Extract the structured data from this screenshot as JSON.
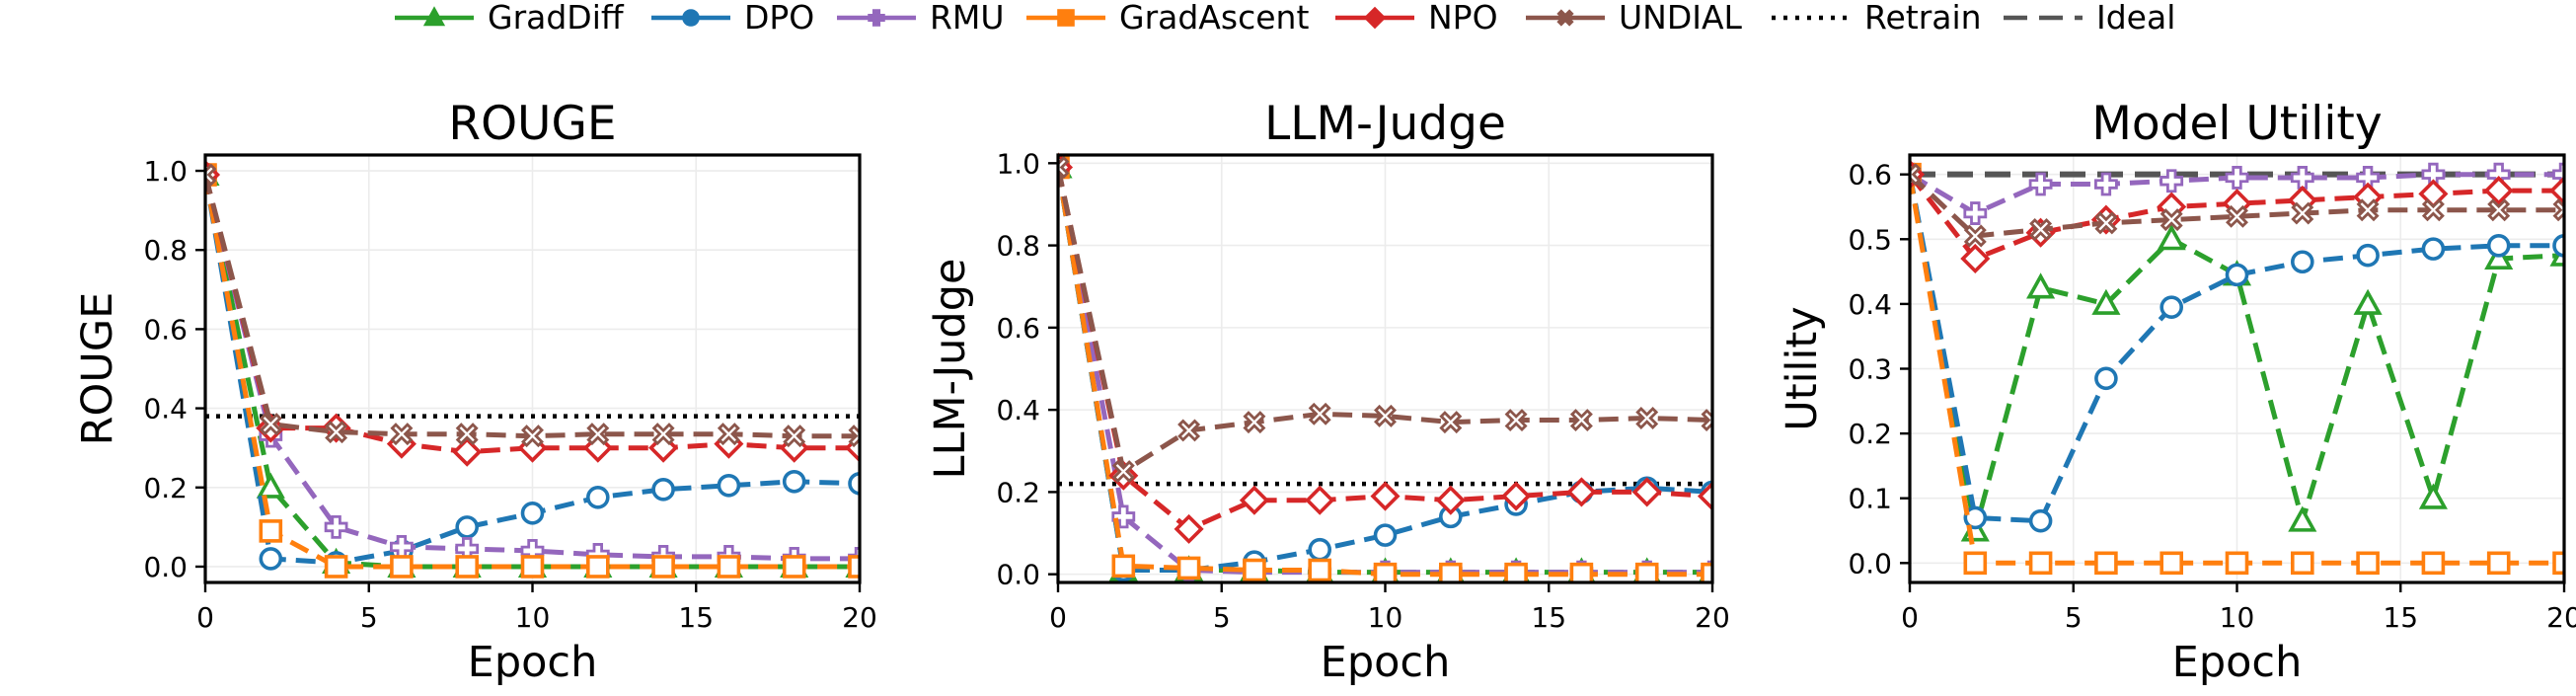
{
  "chart_data": {
    "type": "line",
    "layout": "three panels side by side sharing one legend",
    "legend_position": "top-center",
    "legend": [
      {
        "name": "GradDiff",
        "color": "#2ca02c",
        "marker": "triangle",
        "style": "solid"
      },
      {
        "name": "DPO",
        "color": "#1f77b4",
        "marker": "circle",
        "style": "solid"
      },
      {
        "name": "RMU",
        "color": "#9467bd",
        "marker": "plus",
        "style": "solid"
      },
      {
        "name": "GradAscent",
        "color": "#ff7f0e",
        "marker": "square",
        "style": "solid"
      },
      {
        "name": "NPO",
        "color": "#d62728",
        "marker": "diamond",
        "style": "solid"
      },
      {
        "name": "UNDIAL",
        "color": "#8c564b",
        "marker": "x",
        "style": "solid"
      },
      {
        "name": "Retrain",
        "color": "#000000",
        "marker": "none",
        "style": "dotted"
      },
      {
        "name": "Ideal",
        "color": "#555555",
        "marker": "none",
        "style": "dashed"
      }
    ],
    "panels": [
      {
        "title": "ROUGE",
        "xlabel": "Epoch",
        "ylabel": "ROUGE",
        "xlim": [
          0,
          20
        ],
        "ylim": [
          -0.04,
          1.04
        ],
        "xticks": [
          0,
          5,
          10,
          15,
          20
        ],
        "yticks": [
          0.0,
          0.2,
          0.4,
          0.6,
          0.8,
          1.0
        ],
        "ytick_labels": [
          "0.0",
          "0.2",
          "0.4",
          "0.6",
          "0.8",
          "1.0"
        ],
        "hlines": [
          {
            "name": "Retrain",
            "y": 0.38
          }
        ],
        "series": [
          {
            "name": "GradDiff",
            "x": [
              0,
              2,
              4,
              6,
              8,
              10,
              12,
              14,
              16,
              18,
              20
            ],
            "y": [
              0.99,
              0.2,
              0.01,
              0.0,
              0.0,
              0.0,
              0.0,
              0.0,
              0.0,
              0.0,
              0.0
            ]
          },
          {
            "name": "DPO",
            "x": [
              0,
              2,
              4,
              6,
              8,
              10,
              12,
              14,
              16,
              18,
              20
            ],
            "y": [
              0.99,
              0.02,
              0.01,
              0.04,
              0.1,
              0.135,
              0.175,
              0.195,
              0.205,
              0.215,
              0.21
            ]
          },
          {
            "name": "RMU",
            "x": [
              0,
              2,
              4,
              6,
              8,
              10,
              12,
              14,
              16,
              18,
              20
            ],
            "y": [
              0.99,
              0.33,
              0.1,
              0.05,
              0.045,
              0.04,
              0.03,
              0.025,
              0.025,
              0.02,
              0.02
            ]
          },
          {
            "name": "GradAscent",
            "x": [
              0,
              2,
              4,
              6,
              8,
              10,
              12,
              14,
              16,
              18,
              20
            ],
            "y": [
              0.99,
              0.09,
              0.0,
              0.0,
              0.0,
              0.0,
              0.0,
              0.0,
              0.0,
              0.0,
              0.0
            ]
          },
          {
            "name": "NPO",
            "x": [
              0,
              2,
              4,
              6,
              8,
              10,
              12,
              14,
              16,
              18,
              20
            ],
            "y": [
              0.99,
              0.35,
              0.35,
              0.31,
              0.29,
              0.3,
              0.3,
              0.3,
              0.31,
              0.3,
              0.3
            ]
          },
          {
            "name": "UNDIAL",
            "x": [
              0,
              2,
              4,
              6,
              8,
              10,
              12,
              14,
              16,
              18,
              20
            ],
            "y": [
              0.99,
              0.36,
              0.34,
              0.335,
              0.335,
              0.33,
              0.335,
              0.335,
              0.335,
              0.33,
              0.33
            ]
          }
        ]
      },
      {
        "title": "LLM-Judge",
        "xlabel": "Epoch",
        "ylabel": "LLM-Judge",
        "xlim": [
          0,
          20
        ],
        "ylim": [
          -0.02,
          1.02
        ],
        "xticks": [
          0,
          5,
          10,
          15,
          20
        ],
        "yticks": [
          0.0,
          0.2,
          0.4,
          0.6,
          0.8,
          1.0
        ],
        "ytick_labels": [
          "0.0",
          "0.2",
          "0.4",
          "0.6",
          "0.8",
          "1.0"
        ],
        "hlines": [
          {
            "name": "Retrain",
            "y": 0.22
          }
        ],
        "series": [
          {
            "name": "GradDiff",
            "x": [
              0,
              2,
              4,
              6,
              8,
              10,
              12,
              14,
              16,
              18,
              20
            ],
            "y": [
              0.99,
              0.01,
              0.01,
              0.01,
              0.005,
              0.005,
              0.005,
              0.005,
              0.005,
              0.005,
              0.005
            ]
          },
          {
            "name": "DPO",
            "x": [
              0,
              2,
              4,
              6,
              8,
              10,
              12,
              14,
              16,
              18,
              20
            ],
            "y": [
              0.99,
              0.01,
              0.01,
              0.03,
              0.06,
              0.095,
              0.14,
              0.17,
              0.2,
              0.21,
              0.2
            ]
          },
          {
            "name": "RMU",
            "x": [
              0,
              2,
              4,
              6,
              8,
              10,
              12,
              14,
              16,
              18,
              20
            ],
            "y": [
              0.99,
              0.14,
              0.01,
              0.005,
              0.005,
              0.005,
              0.005,
              0.005,
              0.005,
              0.005,
              0.005
            ]
          },
          {
            "name": "GradAscent",
            "x": [
              0,
              2,
              4,
              6,
              8,
              10,
              12,
              14,
              16,
              18,
              20
            ],
            "y": [
              0.99,
              0.02,
              0.015,
              0.01,
              0.01,
              0.0,
              0.0,
              0.0,
              0.0,
              0.0,
              0.0
            ]
          },
          {
            "name": "NPO",
            "x": [
              0,
              2,
              4,
              6,
              8,
              10,
              12,
              14,
              16,
              18,
              20
            ],
            "y": [
              0.99,
              0.24,
              0.11,
              0.18,
              0.18,
              0.19,
              0.18,
              0.19,
              0.2,
              0.2,
              0.19
            ]
          },
          {
            "name": "UNDIAL",
            "x": [
              0,
              2,
              4,
              6,
              8,
              10,
              12,
              14,
              16,
              18,
              20
            ],
            "y": [
              0.99,
              0.25,
              0.35,
              0.37,
              0.39,
              0.385,
              0.37,
              0.375,
              0.375,
              0.38,
              0.375
            ]
          }
        ]
      },
      {
        "title": "Model Utility",
        "xlabel": "Epoch",
        "ylabel": "Utility",
        "xlim": [
          0,
          20
        ],
        "ylim": [
          -0.03,
          0.63
        ],
        "xticks": [
          0,
          5,
          10,
          15,
          20
        ],
        "yticks": [
          0.0,
          0.1,
          0.2,
          0.3,
          0.4,
          0.5,
          0.6
        ],
        "ytick_labels": [
          "0.0",
          "0.1",
          "0.2",
          "0.3",
          "0.4",
          "0.5",
          "0.6"
        ],
        "hlines": [
          {
            "name": "Ideal",
            "y": 0.6
          }
        ],
        "series": [
          {
            "name": "GradDiff",
            "x": [
              0,
              2,
              4,
              6,
              8,
              10,
              12,
              14,
              16,
              18,
              20
            ],
            "y": [
              0.6,
              0.05,
              0.425,
              0.4,
              0.5,
              0.445,
              0.065,
              0.4,
              0.1,
              0.47,
              0.475
            ]
          },
          {
            "name": "DPO",
            "x": [
              0,
              2,
              4,
              6,
              8,
              10,
              12,
              14,
              16,
              18,
              20
            ],
            "y": [
              0.6,
              0.07,
              0.065,
              0.285,
              0.395,
              0.445,
              0.465,
              0.475,
              0.485,
              0.49,
              0.49
            ]
          },
          {
            "name": "RMU",
            "x": [
              0,
              2,
              4,
              6,
              8,
              10,
              12,
              14,
              16,
              18,
              20
            ],
            "y": [
              0.6,
              0.54,
              0.585,
              0.585,
              0.59,
              0.595,
              0.595,
              0.595,
              0.6,
              0.6,
              0.6
            ]
          },
          {
            "name": "GradAscent",
            "x": [
              0,
              2,
              4,
              6,
              8,
              10,
              12,
              14,
              16,
              18,
              20
            ],
            "y": [
              0.6,
              0.0,
              0.0,
              0.0,
              0.0,
              0.0,
              0.0,
              0.0,
              0.0,
              0.0,
              0.0
            ]
          },
          {
            "name": "NPO",
            "x": [
              0,
              2,
              4,
              6,
              8,
              10,
              12,
              14,
              16,
              18,
              20
            ],
            "y": [
              0.6,
              0.47,
              0.51,
              0.53,
              0.55,
              0.555,
              0.56,
              0.565,
              0.57,
              0.575,
              0.575
            ]
          },
          {
            "name": "UNDIAL",
            "x": [
              0,
              2,
              4,
              6,
              8,
              10,
              12,
              14,
              16,
              18,
              20
            ],
            "y": [
              0.6,
              0.505,
              0.515,
              0.525,
              0.53,
              0.535,
              0.54,
              0.545,
              0.545,
              0.545,
              0.545
            ]
          }
        ]
      }
    ]
  }
}
